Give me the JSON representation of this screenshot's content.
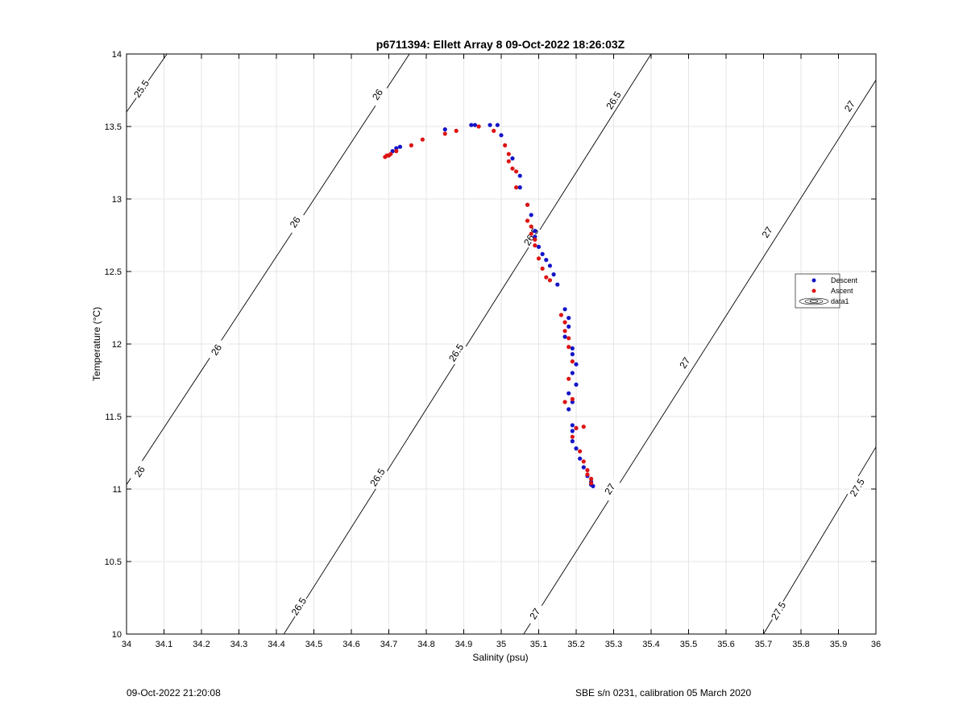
{
  "footer": {
    "left": "09-Oct-2022 21:20:08",
    "right": "SBE s/n 0231, calibration 05 March 2020"
  },
  "chart_data": {
    "type": "scatter",
    "title": "p6711394: Ellett Array 8 09-Oct-2022 18:26:03Z",
    "xlabel": "Salinity (psu)",
    "ylabel": "Temperature (°C)",
    "xlim": [
      34,
      36
    ],
    "ylim": [
      10,
      14
    ],
    "grid": true,
    "x_ticks": [
      34,
      34.1,
      34.2,
      34.3,
      34.4,
      34.5,
      34.6,
      34.7,
      34.8,
      34.9,
      35,
      35.1,
      35.2,
      35.3,
      35.4,
      35.5,
      35.6,
      35.7,
      35.8,
      35.9,
      36
    ],
    "x_tick_labels": [
      "34",
      "34.1",
      "34.2",
      "34.3",
      "34.4",
      "34.5",
      "34.6",
      "34.7",
      "34.8",
      "34.9",
      "35",
      "35.1",
      "35.2",
      "35.3",
      "35.4",
      "35.5",
      "35.6",
      "35.7",
      "35.8",
      "35.9",
      "36"
    ],
    "y_ticks": [
      10,
      10.5,
      11,
      11.5,
      12,
      12.5,
      13,
      13.5,
      14
    ],
    "y_tick_labels": [
      "10",
      "10.5",
      "11",
      "11.5",
      "12",
      "12.5",
      "13",
      "13.5",
      "14"
    ],
    "legend": {
      "placement": "right",
      "entries": [
        "Descent",
        "Ascent",
        "data1"
      ]
    },
    "colors": {
      "descent": "#1414c8",
      "ascent": "#dc1414",
      "contour": "#000000",
      "grid": "#e6e6e6"
    },
    "contours": [
      {
        "level": "25.5",
        "points": [
          [
            34,
            13.6
          ],
          [
            34.108,
            14
          ]
        ],
        "labels": [
          {
            "x": 34.04,
            "y": 13.76
          }
        ]
      },
      {
        "level": "26",
        "points": [
          [
            34,
            11.03
          ],
          [
            34.755,
            14
          ]
        ],
        "labels": [
          {
            "x": 34.035,
            "y": 11.12
          },
          {
            "x": 34.24,
            "y": 11.96
          },
          {
            "x": 34.45,
            "y": 12.84
          },
          {
            "x": 34.67,
            "y": 13.72
          }
        ]
      },
      {
        "level": "26.5",
        "points": [
          [
            34.42,
            10
          ],
          [
            35.4,
            14
          ]
        ],
        "labels": [
          {
            "x": 34.46,
            "y": 10.19
          },
          {
            "x": 34.67,
            "y": 11.08
          },
          {
            "x": 34.88,
            "y": 11.94
          },
          {
            "x": 35.08,
            "y": 12.74
          },
          {
            "x": 35.3,
            "y": 13.68
          }
        ]
      },
      {
        "level": "27",
        "points": [
          [
            35.06,
            10
          ],
          [
            36,
            13.82
          ]
        ],
        "labels": [
          {
            "x": 35.09,
            "y": 10.14
          },
          {
            "x": 35.29,
            "y": 11.0
          },
          {
            "x": 35.49,
            "y": 11.87
          },
          {
            "x": 35.71,
            "y": 12.77
          },
          {
            "x": 35.93,
            "y": 13.64
          }
        ]
      },
      {
        "level": "27.5",
        "points": [
          [
            35.7,
            10
          ],
          [
            36,
            11.29
          ]
        ],
        "labels": [
          {
            "x": 35.74,
            "y": 10.16
          },
          {
            "x": 35.95,
            "y": 11.01
          }
        ]
      }
    ],
    "series": [
      {
        "name": "Descent",
        "points": [
          [
            34.71,
            13.33
          ],
          [
            34.72,
            13.35
          ],
          [
            34.73,
            13.36
          ],
          [
            34.85,
            13.48
          ],
          [
            34.92,
            13.51
          ],
          [
            34.93,
            13.51
          ],
          [
            34.97,
            13.51
          ],
          [
            34.99,
            13.51
          ],
          [
            35.0,
            13.44
          ],
          [
            35.03,
            13.28
          ],
          [
            35.05,
            13.16
          ],
          [
            35.05,
            13.08
          ],
          [
            35.07,
            12.96
          ],
          [
            35.08,
            12.89
          ],
          [
            35.09,
            12.78
          ],
          [
            35.09,
            12.74
          ],
          [
            35.1,
            12.67
          ],
          [
            35.11,
            12.62
          ],
          [
            35.12,
            12.58
          ],
          [
            35.13,
            12.54
          ],
          [
            35.14,
            12.48
          ],
          [
            35.15,
            12.41
          ],
          [
            35.17,
            12.24
          ],
          [
            35.18,
            12.18
          ],
          [
            35.18,
            12.12
          ],
          [
            35.17,
            12.05
          ],
          [
            35.19,
            11.97
          ],
          [
            35.19,
            11.93
          ],
          [
            35.2,
            11.86
          ],
          [
            35.19,
            11.8
          ],
          [
            35.2,
            11.72
          ],
          [
            35.18,
            11.66
          ],
          [
            35.19,
            11.6
          ],
          [
            35.18,
            11.55
          ],
          [
            35.19,
            11.44
          ],
          [
            35.19,
            11.4
          ],
          [
            35.2,
            11.42
          ],
          [
            35.19,
            11.33
          ],
          [
            35.2,
            11.28
          ],
          [
            35.21,
            11.21
          ],
          [
            35.22,
            11.15
          ],
          [
            35.23,
            11.09
          ],
          [
            35.24,
            11.05
          ],
          [
            35.24,
            11.03
          ],
          [
            35.245,
            11.02
          ]
        ]
      },
      {
        "name": "Ascent",
        "points": [
          [
            34.69,
            13.29
          ],
          [
            34.695,
            13.3
          ],
          [
            34.7,
            13.3
          ],
          [
            34.705,
            13.31
          ],
          [
            34.72,
            13.33
          ],
          [
            34.76,
            13.37
          ],
          [
            34.79,
            13.41
          ],
          [
            34.85,
            13.45
          ],
          [
            34.88,
            13.47
          ],
          [
            34.94,
            13.5
          ],
          [
            34.98,
            13.47
          ],
          [
            35.01,
            13.37
          ],
          [
            35.02,
            13.31
          ],
          [
            35.02,
            13.26
          ],
          [
            35.03,
            13.21
          ],
          [
            35.04,
            13.19
          ],
          [
            35.04,
            13.08
          ],
          [
            35.07,
            12.96
          ],
          [
            35.07,
            12.85
          ],
          [
            35.08,
            12.81
          ],
          [
            35.08,
            12.76
          ],
          [
            35.09,
            12.72
          ],
          [
            35.09,
            12.68
          ],
          [
            35.1,
            12.59
          ],
          [
            35.11,
            12.52
          ],
          [
            35.12,
            12.46
          ],
          [
            35.13,
            12.44
          ],
          [
            35.16,
            12.2
          ],
          [
            35.17,
            12.15
          ],
          [
            35.17,
            12.09
          ],
          [
            35.18,
            12.04
          ],
          [
            35.18,
            11.98
          ],
          [
            35.19,
            11.88
          ],
          [
            35.18,
            11.76
          ],
          [
            35.17,
            11.6
          ],
          [
            35.19,
            11.62
          ],
          [
            35.2,
            11.42
          ],
          [
            35.22,
            11.43
          ],
          [
            35.19,
            11.36
          ],
          [
            35.21,
            11.26
          ],
          [
            35.22,
            11.19
          ],
          [
            35.23,
            11.13
          ],
          [
            35.23,
            11.1
          ],
          [
            35.24,
            11.07
          ],
          [
            35.24,
            11.04
          ]
        ]
      }
    ]
  }
}
